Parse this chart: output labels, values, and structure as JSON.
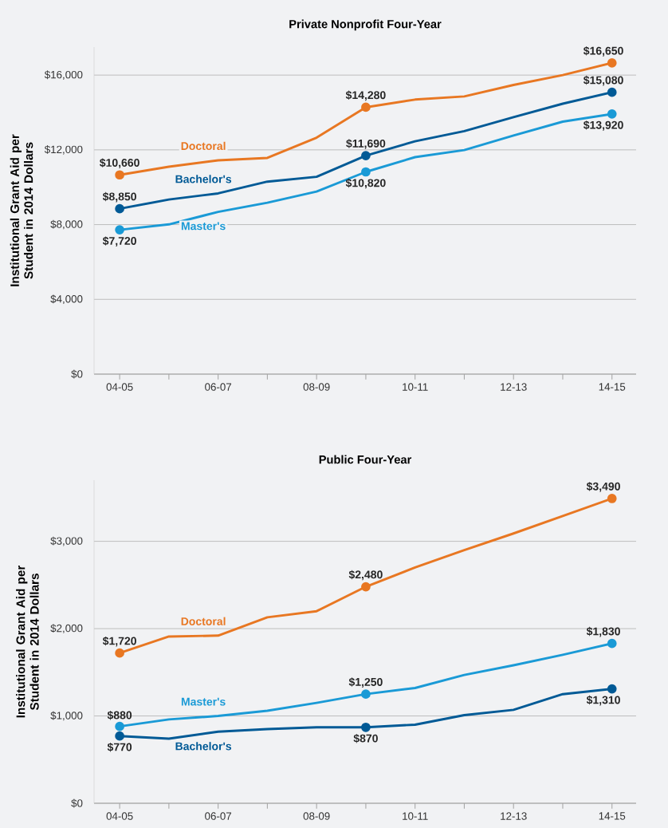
{
  "chart_data": [
    {
      "type": "line",
      "title": "Private Nonprofit Four-Year",
      "ylabel": "Institutional Grant Aid per Student in 2014 Dollars",
      "categories": [
        "04-05",
        null,
        "06-07",
        null,
        "08-09",
        null,
        "10-11",
        null,
        "12-13",
        null,
        "14-15"
      ],
      "ylim": [
        0,
        17500
      ],
      "yticks": [
        {
          "value": 0,
          "label": "$0"
        },
        {
          "value": 4000,
          "label": "$4,000"
        },
        {
          "value": 8000,
          "label": "$8,000"
        },
        {
          "value": 12000,
          "label": "$12,000"
        },
        {
          "value": 16000,
          "label": "$16,000"
        }
      ],
      "grid": "y",
      "legend": false,
      "series": [
        {
          "name": "Doctoral",
          "color": "#e87722",
          "values": [
            10660,
            11100,
            11440,
            11570,
            12650,
            14280,
            14690,
            14860,
            15470,
            16000,
            16650
          ],
          "value_labels": [
            "$10,660",
            null,
            null,
            null,
            null,
            "$14,280",
            null,
            null,
            null,
            null,
            "$16,650"
          ]
        },
        {
          "name": "Bachelor's",
          "color": "#005a96",
          "values": [
            8850,
            9340,
            9670,
            10300,
            10560,
            11690,
            12460,
            13000,
            13750,
            14470,
            15080
          ],
          "value_labels": [
            "$8,850",
            null,
            null,
            null,
            null,
            "$11,690",
            null,
            null,
            null,
            null,
            "$15,080"
          ]
        },
        {
          "name": "Master's",
          "color": "#1a9ad6",
          "values": [
            7720,
            8010,
            8680,
            9170,
            9770,
            10820,
            11610,
            11990,
            12770,
            13510,
            13920
          ],
          "value_labels": [
            "$7,720",
            null,
            null,
            null,
            null,
            "$10,820",
            null,
            null,
            null,
            null,
            "$13,920"
          ]
        }
      ]
    },
    {
      "type": "line",
      "title": "Public Four-Year",
      "ylabel": "Institutional Grant Aid per Student in 2014 Dollars",
      "categories": [
        "04-05",
        null,
        "06-07",
        null,
        "08-09",
        null,
        "10-11",
        null,
        "12-13",
        null,
        "14-15"
      ],
      "ylim": [
        0,
        3700
      ],
      "yticks": [
        {
          "value": 0,
          "label": "$0"
        },
        {
          "value": 1000,
          "label": "$1,000"
        },
        {
          "value": 2000,
          "label": "$2,000"
        },
        {
          "value": 3000,
          "label": "$3,000"
        }
      ],
      "grid": "y",
      "legend": false,
      "series": [
        {
          "name": "Doctoral",
          "color": "#e87722",
          "values": [
            1720,
            1910,
            1920,
            2130,
            2200,
            2480,
            2700,
            2900,
            3090,
            3290,
            3490
          ],
          "value_labels": [
            "$1,720",
            null,
            null,
            null,
            null,
            "$2,480",
            null,
            null,
            null,
            null,
            "$3,490"
          ]
        },
        {
          "name": "Bachelor's",
          "color": "#005a96",
          "values": [
            770,
            740,
            820,
            850,
            870,
            870,
            900,
            1010,
            1070,
            1250,
            1310
          ],
          "value_labels": [
            "$770",
            null,
            null,
            null,
            null,
            "$870",
            null,
            null,
            null,
            null,
            "$1,310"
          ]
        },
        {
          "name": "Master's",
          "color": "#1a9ad6",
          "values": [
            880,
            960,
            1000,
            1060,
            1150,
            1250,
            1320,
            1470,
            1580,
            1700,
            1830
          ],
          "value_labels": [
            "$880",
            null,
            null,
            null,
            null,
            "$1,250",
            null,
            null,
            null,
            null,
            "$1,830"
          ]
        }
      ]
    }
  ]
}
